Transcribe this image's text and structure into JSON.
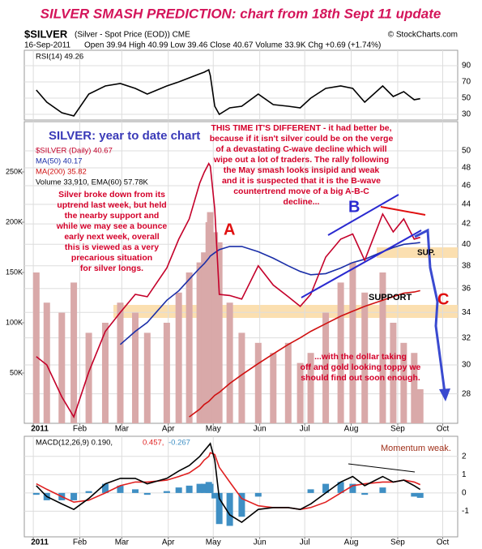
{
  "title": "SILVER SMASH PREDICTION: chart from 18th Sept 11 update",
  "header": {
    "symbol": "$SILVER",
    "desc": "(Silver - Spot Price (EOD)) CME",
    "credit": "© StockCharts.com",
    "date": "16-Sep-2011",
    "quote": "Open 39.94 High 40.99 Low 39.46 Close 40.67 Volume 33.9K Chg +0.69 (+1.74%)"
  },
  "chart_data": [
    {
      "type": "line",
      "xlim": [
        -5,
        284
      ],
      "ylim": [
        23,
        109
      ],
      "yticks": [
        30,
        50,
        70,
        90
      ],
      "grid": true,
      "x": [
        3,
        10,
        20,
        28,
        38,
        49,
        59,
        69,
        77,
        90,
        98,
        105,
        112,
        115,
        118,
        119,
        122,
        125,
        132,
        140,
        151,
        161,
        171,
        179,
        186,
        196,
        206,
        214,
        222,
        234,
        241,
        248,
        255,
        259
      ],
      "series": [
        {
          "name": "RSI(14) 49.26",
          "color": "#000000",
          "values": [
            60,
            45,
            32,
            28,
            55,
            65,
            68,
            62,
            55,
            65,
            70,
            75,
            80,
            82,
            85,
            78,
            40,
            30,
            38,
            40,
            55,
            42,
            40,
            38,
            50,
            62,
            65,
            62,
            45,
            65,
            52,
            58,
            48,
            49.26
          ]
        }
      ]
    },
    {
      "type": "line",
      "log": true,
      "xlim": [
        -5,
        284
      ],
      "ylim": [
        26.1,
        53.6
      ],
      "yticks": [
        28,
        30,
        32,
        34,
        36,
        38,
        40,
        42,
        44,
        46,
        48,
        50
      ],
      "grid": true,
      "y2lim": [
        0,
        300000
      ],
      "y2ticks": [
        {
          "value": 50000,
          "label": "50K"
        },
        {
          "value": 100000,
          "label": "100K"
        },
        {
          "value": 150000,
          "label": "150K"
        },
        {
          "value": 200000,
          "label": "200K"
        },
        {
          "value": 250000,
          "label": "250K"
        }
      ],
      "xticks": [
        {
          "value": 1,
          "label": "2011"
        },
        {
          "value": 32,
          "label": "Feb"
        },
        {
          "value": 60,
          "label": "Mar"
        },
        {
          "value": 91,
          "label": "Apr"
        },
        {
          "value": 121,
          "label": "May"
        },
        {
          "value": 152,
          "label": "Jun"
        },
        {
          "value": 182,
          "label": "Jul"
        },
        {
          "value": 213,
          "label": "Aug"
        },
        {
          "value": 244,
          "label": "Sep"
        },
        {
          "value": 274,
          "label": "Oct"
        }
      ],
      "x": [
        3,
        10,
        20,
        28,
        38,
        49,
        59,
        69,
        77,
        90,
        98,
        105,
        112,
        115,
        118,
        119,
        122,
        125,
        132,
        140,
        151,
        161,
        171,
        179,
        186,
        196,
        206,
        214,
        222,
        234,
        241,
        248,
        255,
        259
      ],
      "series": [
        {
          "name": "Volume 33,910, EMA(60) 57.78K",
          "type": "bar",
          "axis": "y2",
          "color": "#d9a9a9",
          "values": [
            150000,
            120000,
            110000,
            140000,
            90000,
            100000,
            120000,
            110000,
            90000,
            100000,
            130000,
            150000,
            160000,
            170000,
            200000,
            210000,
            190000,
            180000,
            120000,
            90000,
            80000,
            70000,
            80000,
            60000,
            70000,
            110000,
            140000,
            160000,
            130000,
            150000,
            100000,
            80000,
            70000,
            33910
          ]
        },
        {
          "name": "MA(200) 35.82",
          "color": "#d01010",
          "values": [
            null,
            null,
            null,
            null,
            null,
            null,
            null,
            null,
            null,
            null,
            null,
            26.5,
            27.0,
            27.3,
            27.5,
            27.6,
            27.9,
            28.1,
            28.7,
            29.3,
            30.1,
            30.8,
            31.5,
            32.0,
            32.5,
            33.1,
            33.7,
            34.1,
            34.5,
            35.0,
            35.3,
            35.6,
            35.7,
            35.82
          ]
        },
        {
          "name": "MA(50) 40.17",
          "color": "#1a2ea8",
          "values": [
            null,
            null,
            null,
            null,
            null,
            null,
            31.5,
            32.5,
            33.2,
            35.0,
            35.8,
            36.8,
            37.8,
            38.2,
            38.7,
            38.9,
            39.2,
            39.5,
            39.8,
            39.8,
            39.3,
            38.7,
            38.0,
            37.5,
            37.2,
            37.3,
            37.8,
            38.3,
            38.6,
            39.3,
            39.7,
            40.0,
            40.1,
            40.17
          ]
        },
        {
          "name": "$SILVER (Daily) 40.67",
          "color": "#c4002a",
          "values": [
            30.6,
            30.0,
            27.8,
            26.5,
            29.5,
            32.5,
            34.0,
            35.5,
            35.3,
            37.8,
            40.5,
            42.5,
            46.3,
            47.5,
            48.5,
            48.2,
            43.5,
            35.5,
            35.4,
            35.1,
            38.0,
            36.3,
            35.3,
            34.5,
            35.5,
            38.8,
            40.5,
            41.0,
            38.5,
            43.0,
            41.2,
            42.5,
            40.5,
            40.67
          ]
        }
      ],
      "annotations": {
        "heading": "SILVER: year to date chart",
        "main": [
          "THIS TIME IT'S DIFFERENT - it had better be,",
          "because if it isn't silver could be on the verge",
          "of a devastating C-wave decline which will",
          "wipe out a lot of traders. The rally following",
          "the May smash looks insipid and weak",
          "and it is suspected that it is the B-wave",
          "countertrend move of a big A-B-C",
          "decline..."
        ],
        "left": [
          "Silver broke down from its",
          "uptrend last week, but held",
          "the nearby support and",
          "while we may see a bounce",
          "early next week, overall",
          "this is viewed as a very",
          "precarious situation",
          "for silver longs."
        ],
        "dollar": [
          "...with the dollar taking",
          "off and gold looking toppy we",
          "should find out soon enough."
        ],
        "a": "A",
        "b": "B",
        "c": "C",
        "sup": "SUP.",
        "support": "SUPPORT"
      }
    },
    {
      "type": "line",
      "xlim": [
        -5,
        284
      ],
      "ylim": [
        -2.4,
        3.1
      ],
      "yticks": [
        -1,
        0,
        1,
        2
      ],
      "grid": true,
      "xticks": [
        {
          "value": 1,
          "label": "2011"
        },
        {
          "value": 32,
          "label": "Feb"
        },
        {
          "value": 60,
          "label": "Mar"
        },
        {
          "value": 91,
          "label": "Apr"
        },
        {
          "value": 121,
          "label": "May"
        },
        {
          "value": 152,
          "label": "Jun"
        },
        {
          "value": 182,
          "label": "Jul"
        },
        {
          "value": 213,
          "label": "Aug"
        },
        {
          "value": 244,
          "label": "Sep"
        },
        {
          "value": 274,
          "label": "Oct"
        }
      ],
      "x": [
        3,
        10,
        20,
        28,
        38,
        49,
        59,
        69,
        77,
        90,
        98,
        105,
        112,
        115,
        118,
        119,
        122,
        125,
        132,
        140,
        151,
        161,
        171,
        179,
        186,
        196,
        206,
        214,
        222,
        234,
        241,
        248,
        255,
        259
      ],
      "series": [
        {
          "name": "-0.267",
          "type": "bar",
          "color": "#3f8fc4",
          "values": [
            -0.1,
            -0.4,
            -0.4,
            -0.4,
            0.1,
            0.5,
            0.4,
            0.2,
            -0.1,
            0.1,
            0.3,
            0.4,
            0.5,
            0.5,
            0.6,
            0.5,
            -0.3,
            -1.7,
            -1.8,
            -1.3,
            -0.2,
            0.0,
            0.0,
            0.0,
            0.2,
            0.5,
            0.6,
            0.5,
            -0.1,
            0.3,
            0.0,
            0.0,
            -0.2,
            -0.267
          ]
        },
        {
          "name": "0.457,",
          "color": "#e02020",
          "values": [
            0.5,
            0.2,
            -0.2,
            -0.5,
            -0.4,
            0.0,
            0.4,
            0.6,
            0.6,
            0.7,
            0.9,
            1.1,
            1.5,
            1.8,
            2.0,
            2.2,
            2.1,
            1.4,
            0.6,
            -0.3,
            -0.7,
            -0.8,
            -0.8,
            -0.9,
            -0.8,
            -0.5,
            0.0,
            0.4,
            0.5,
            0.6,
            0.6,
            0.7,
            0.6,
            0.457
          ]
        },
        {
          "name": "MACD(12,26,9) 0.190,",
          "color": "#000000",
          "values": [
            0.4,
            -0.2,
            -0.6,
            -0.9,
            -0.3,
            0.5,
            0.8,
            0.8,
            0.5,
            0.8,
            1.2,
            1.5,
            2.0,
            2.3,
            2.6,
            2.7,
            1.8,
            -0.3,
            -1.2,
            -1.6,
            -0.9,
            -0.8,
            -0.8,
            -0.9,
            -0.6,
            0.0,
            0.6,
            0.9,
            0.4,
            0.9,
            0.6,
            0.7,
            0.4,
            0.19
          ]
        }
      ],
      "annotations": {
        "momentum": "Momentum weak."
      }
    }
  ]
}
